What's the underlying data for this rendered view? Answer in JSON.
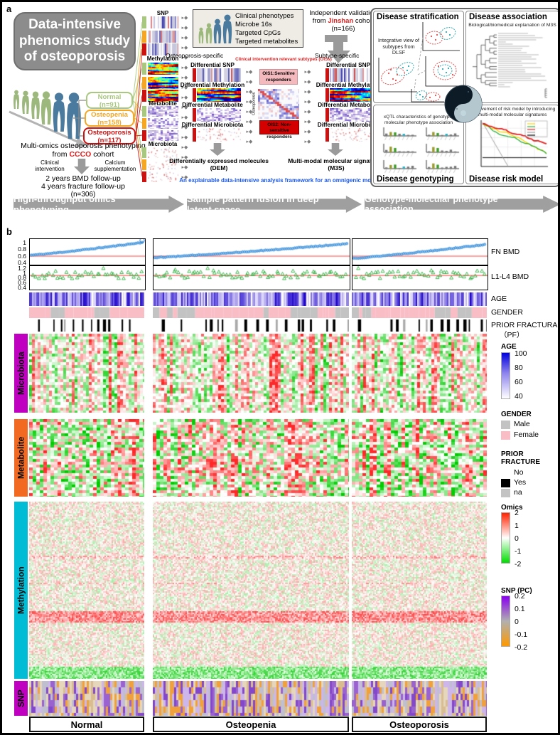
{
  "figure": {
    "panel_a_label": "a",
    "panel_b_label": "b"
  },
  "decor": {
    "flow_glyph": "▸◆",
    "arrow_color": "#9f9f9f"
  },
  "panel_a": {
    "title": "Data-intensive phenomics study of osteoporosis",
    "groups": [
      {
        "label": "Normal",
        "n": "(n=91)",
        "color": "#a9c87f"
      },
      {
        "label": "Osteopenia",
        "n": "(n=158)",
        "color": "#f5a623"
      },
      {
        "label": "Osteoporosis",
        "n": "(n=117)",
        "color": "#cc1111"
      }
    ],
    "cohort_line1": "Multi-omics osteoporosis phenotyping",
    "cohort_from": "from",
    "cohort_name": "CCCO",
    "cohort_word": "cohort",
    "clinical": "Clinical intervention",
    "calcium": "Calcium supplementation",
    "followup1": "2 years BMD follow-up",
    "followup2": "4 years fracture follow-up",
    "followup_n": "(n=306)",
    "omics_thumbs": [
      "SNP",
      "Methylation",
      "Metabolite",
      "Microbiota"
    ],
    "top_box": [
      "Clinical phenotypes",
      "Microbe 16s",
      "Targeted CpGs",
      "Targeted metabolites"
    ],
    "validation_line1": "Independent validation",
    "validation_from": "from",
    "validation_cohort": "Jinshan",
    "validation_word": "cohort",
    "validation_n": "(n=166)",
    "spec_left": "Osteoporosis-specific",
    "spec_right": "Subtype-specific",
    "differential": [
      "Differential SNP",
      "Differential Methylation",
      "Differential Metabolite",
      "Differential Microbiota"
    ],
    "ois_header": "Clinical intervention relevant subtypes (OISs)",
    "ois1_line1": "OIS1:Sensitive",
    "ois1_line2": "responders",
    "ois2_line1": "OIS2: Non-sensitive",
    "ois2_line2": "responders",
    "matrix_label": "Osteoporosis",
    "dem_line1": "Differentially expressed molecules",
    "dem_line2": "(DEM)",
    "m3s_line1": "Multi-modal molecular signatures",
    "m3s_line2": "(M3S)",
    "note": "An explainable data-intensive analysis framework for an omnigenic model",
    "quadrants": {
      "stratification": {
        "title": "Disease stratification",
        "subtitle": "Integrative view of subtypes from DLSF"
      },
      "association": {
        "title": "Disease association",
        "subtitle": "Biological/biomedical explanation of M3S"
      },
      "genotyping": {
        "title": "Disease genotyping",
        "subtitle": "xQTL characteristics of genotype-molecular phenotype association"
      },
      "risk": {
        "title": "Disease risk model",
        "subtitle": "Improvement of risk model by introducing multi-modal molecular signatures"
      }
    },
    "banners": [
      "High-throughput omics phenotyping",
      "Sample pattern fusion in deep latent space",
      "Genotype-molecular phenotype association"
    ]
  },
  "panel_b": {
    "fn_bmd": {
      "label": "FN BMD",
      "ticks": [
        "1",
        "0.8",
        "0.6",
        "0.4"
      ]
    },
    "l1l4_bmd": {
      "label": "L1-L4 BMD",
      "ticks": [
        "1.2",
        "1",
        "0.8",
        "0.6",
        "0.4"
      ]
    },
    "age_label": "AGE",
    "gender_label": "GENDER",
    "pf_label": "PRIOR FRACTURAE",
    "pf_label2": "（PF）",
    "omics_rows": [
      {
        "label": "Microbiota",
        "color": "#c000c0"
      },
      {
        "label": "Metabolite",
        "color": "#f26a22"
      },
      {
        "label": "Methylation",
        "color": "#00bcd4"
      },
      {
        "label": "SNP",
        "color": "#c000c0"
      }
    ],
    "group_labels": [
      "Normal",
      "Osteopenia",
      "Osteoporosis"
    ],
    "legends": {
      "age": {
        "title": "AGE",
        "ticks": [
          "100",
          "80",
          "60",
          "40"
        ],
        "top_color": "#0000dd",
        "bottom_color": "#ffffff"
      },
      "gender": {
        "title": "GENDER",
        "items": [
          {
            "label": "Male",
            "color": "#c3c3c3"
          },
          {
            "label": "Female",
            "color": "#f9bdc6"
          }
        ]
      },
      "fracture": {
        "title1": "PRIOR",
        "title2": "FRACTURE",
        "items": [
          {
            "label": "No",
            "color": "#ffffff"
          },
          {
            "label": "Yes",
            "color": "#000000"
          },
          {
            "label": "na",
            "color": "#c3c3c3"
          }
        ]
      },
      "omics": {
        "title": "Omics",
        "ticks": [
          "2",
          "1",
          "0",
          "-1",
          "-2"
        ],
        "colors": [
          "#ff2200",
          "#ffffff",
          "#00dd00"
        ]
      },
      "snp": {
        "title": "SNP (PC)",
        "ticks": [
          "0.2",
          "0.1",
          "0",
          "-0.1",
          "-0.2"
        ],
        "colors": [
          "#8800ee",
          "#b0b0b0",
          "#ff9900"
        ]
      }
    }
  }
}
